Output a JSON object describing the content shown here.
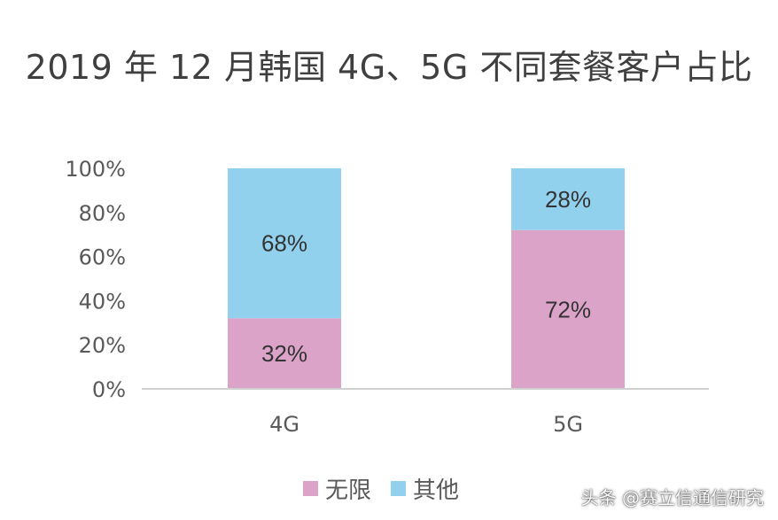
{
  "chart_data": {
    "type": "bar",
    "stacked": true,
    "title": "2019 年 12 月韩国 4G、5G 不同套餐客户占比",
    "categories": [
      "4G",
      "5G"
    ],
    "series": [
      {
        "name": "无限",
        "values": [
          32,
          72
        ],
        "labels": [
          "32%",
          "72%"
        ],
        "color": "#dba3c8"
      },
      {
        "name": "其他",
        "values": [
          68,
          28
        ],
        "labels": [
          "68%",
          "28%"
        ],
        "color": "#92d1ee"
      }
    ],
    "ylim": [
      0,
      100
    ],
    "yticks": [
      "0%",
      "20%",
      "40%",
      "60%",
      "80%",
      "100%"
    ],
    "grid": false,
    "legend_position": "bottom"
  },
  "watermark": "头条 @赛立信通信研究"
}
